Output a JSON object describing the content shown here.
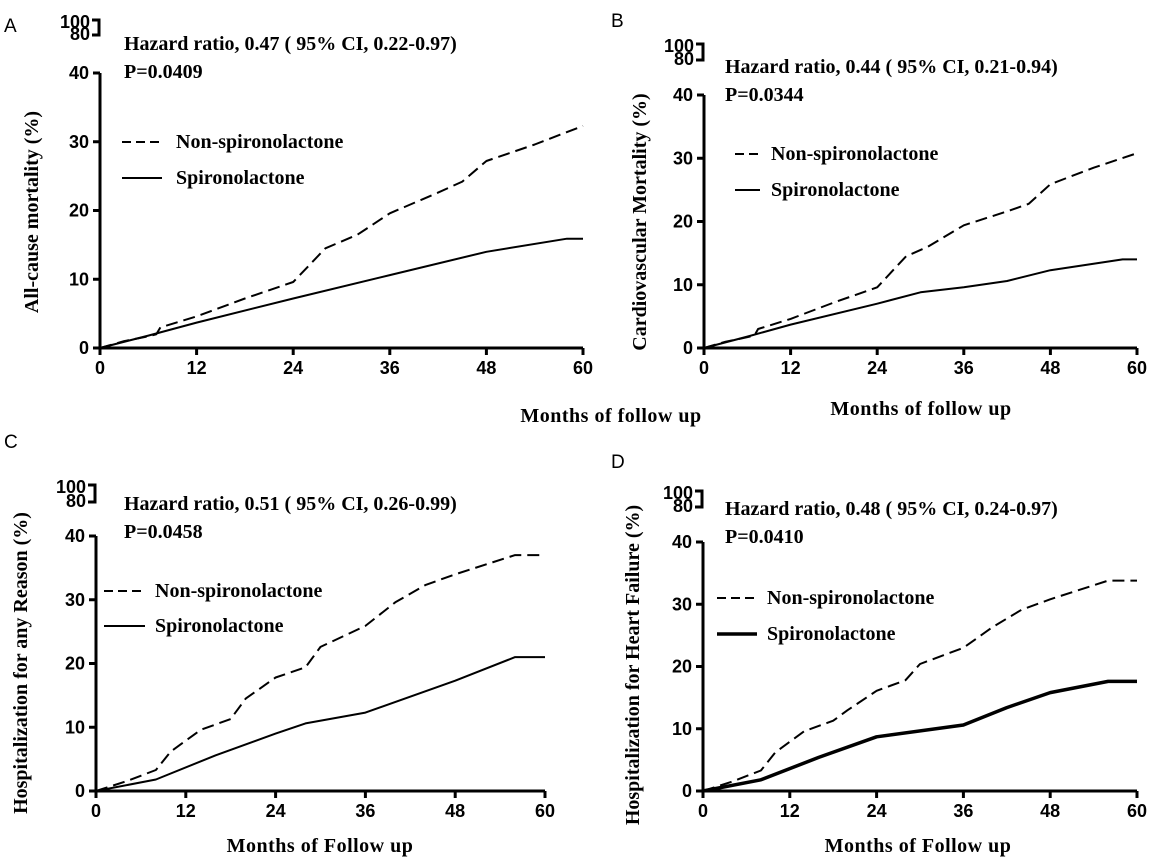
{
  "chart_data": [
    {
      "type": "line",
      "panel_label": "A",
      "annotation": [
        "Hazard ratio, 0.47 ( 95% CI, 0.22-0.97)",
        "P=0.0409"
      ],
      "xlabel": "Months of follow up",
      "ylabel": "All-cause mortality (%)",
      "xlim": [
        0,
        60
      ],
      "xticks": [
        "0",
        "12",
        "24",
        "36",
        "48",
        "60"
      ],
      "ylim": [
        0,
        40
      ],
      "yticks": [
        "0",
        "10",
        "20",
        "30",
        "40"
      ],
      "ybreak_ticks": [
        "80",
        "100"
      ],
      "legend_position": "upper-left",
      "series": [
        {
          "name": "Non-spironolactone",
          "style": "dashed",
          "width": 2,
          "x": [
            0,
            3,
            6,
            7,
            7.5,
            12,
            18,
            24,
            28,
            32,
            36,
            42,
            45,
            48,
            54,
            60
          ],
          "y": [
            0,
            1.0,
            1.7,
            2.0,
            3.0,
            4.6,
            7.2,
            9.6,
            14.5,
            16.5,
            19.6,
            22.6,
            24.2,
            27.2,
            29.6,
            32.3
          ]
        },
        {
          "name": "Spironolactone",
          "style": "solid",
          "width": 2,
          "x": [
            0,
            6,
            12,
            24,
            36,
            48,
            58,
            60
          ],
          "y": [
            0,
            1.8,
            3.7,
            7.2,
            10.6,
            14.0,
            15.9,
            15.9
          ]
        }
      ]
    },
    {
      "type": "line",
      "panel_label": "B",
      "annotation": [
        "Hazard ratio, 0.44 ( 95% CI, 0.21-0.94)",
        "P=0.0344"
      ],
      "xlabel": "Months of follow up",
      "ylabel": "Cardiovascular Mortality (%)",
      "xlim": [
        0,
        60
      ],
      "xticks": [
        "0",
        "12",
        "24",
        "36",
        "48",
        "60"
      ],
      "ylim": [
        0,
        40
      ],
      "yticks": [
        "0",
        "10",
        "20",
        "30",
        "40"
      ],
      "ybreak_ticks": [
        "80",
        "100"
      ],
      "legend_position": "upper-left",
      "series": [
        {
          "name": "Non-spironolactone",
          "style": "dashed",
          "width": 2,
          "x": [
            0,
            3,
            6,
            7,
            7.5,
            12,
            18,
            24,
            28,
            31,
            36,
            42,
            45,
            48,
            54,
            60
          ],
          "y": [
            0,
            1.0,
            1.7,
            2.0,
            3.0,
            4.6,
            7.2,
            9.6,
            14.5,
            16.0,
            19.4,
            21.6,
            22.8,
            25.9,
            28.5,
            30.8
          ]
        },
        {
          "name": "Spironolactone",
          "style": "solid",
          "width": 2,
          "x": [
            0,
            6,
            12,
            24,
            30,
            36,
            42,
            48,
            58,
            60
          ],
          "y": [
            0,
            1.8,
            3.7,
            7.0,
            8.8,
            9.6,
            10.6,
            12.3,
            14.0,
            14.0
          ]
        }
      ]
    },
    {
      "type": "line",
      "panel_label": "C",
      "annotation": [
        "Hazard ratio, 0.51 ( 95% CI, 0.26-0.99)",
        "P=0.0458"
      ],
      "xlabel": "Months of Follow up",
      "ylabel": "Hospitalization for any Reason (%)",
      "xlim": [
        0,
        60
      ],
      "xticks": [
        "0",
        "12",
        "24",
        "36",
        "48",
        "60"
      ],
      "ylim": [
        0,
        40
      ],
      "yticks": [
        "0",
        "10",
        "20",
        "30",
        "40"
      ],
      "ybreak_ticks": [
        "80",
        "100"
      ],
      "legend_position": "upper-left",
      "series": [
        {
          "name": "Non-spironolactone",
          "style": "dashed",
          "width": 2,
          "x": [
            0,
            4,
            8,
            10,
            14,
            18,
            20,
            24,
            28,
            30,
            36,
            40,
            44,
            48,
            56,
            60
          ],
          "y": [
            0,
            1.5,
            3.3,
            6.2,
            9.6,
            11.3,
            14.5,
            17.8,
            19.4,
            22.6,
            25.9,
            29.6,
            32.3,
            34.0,
            37.0,
            37.0
          ]
        },
        {
          "name": "Spironolactone",
          "style": "solid",
          "width": 2,
          "x": [
            0,
            8,
            16,
            24,
            28,
            36,
            48,
            56,
            60
          ],
          "y": [
            0,
            1.8,
            5.6,
            9.0,
            10.6,
            12.3,
            17.3,
            21.0,
            21.0
          ]
        }
      ]
    },
    {
      "type": "line",
      "panel_label": "D",
      "annotation": [
        "Hazard ratio, 0.48 ( 95% CI, 0.24-0.97)",
        "P=0.0410"
      ],
      "xlabel": "Months of Follow up",
      "ylabel": "Hospitalization for Heart Failure (%)",
      "xlim": [
        0,
        60
      ],
      "xticks": [
        "0",
        "12",
        "24",
        "36",
        "48",
        "60"
      ],
      "ylim": [
        0,
        40
      ],
      "yticks": [
        "0",
        "10",
        "20",
        "30",
        "40"
      ],
      "ybreak_ticks": [
        "80",
        "100"
      ],
      "legend_position": "upper-left",
      "series": [
        {
          "name": "Non-spironolactone",
          "style": "dashed",
          "width": 2,
          "x": [
            0,
            4,
            8,
            10,
            14,
            18,
            20,
            24,
            28,
            30,
            36,
            40,
            44,
            48,
            56,
            60
          ],
          "y": [
            0,
            1.5,
            3.3,
            6.2,
            9.6,
            11.3,
            13.0,
            16.1,
            17.8,
            20.4,
            23.0,
            26.3,
            29.1,
            30.8,
            33.8,
            33.8
          ]
        },
        {
          "name": "Spironolactone",
          "style": "solid",
          "width": 3.5,
          "x": [
            0,
            8,
            16,
            24,
            36,
            42,
            48,
            56,
            60
          ],
          "y": [
            0,
            1.8,
            5.4,
            8.7,
            10.6,
            13.4,
            15.8,
            17.6,
            17.6
          ]
        }
      ]
    }
  ]
}
